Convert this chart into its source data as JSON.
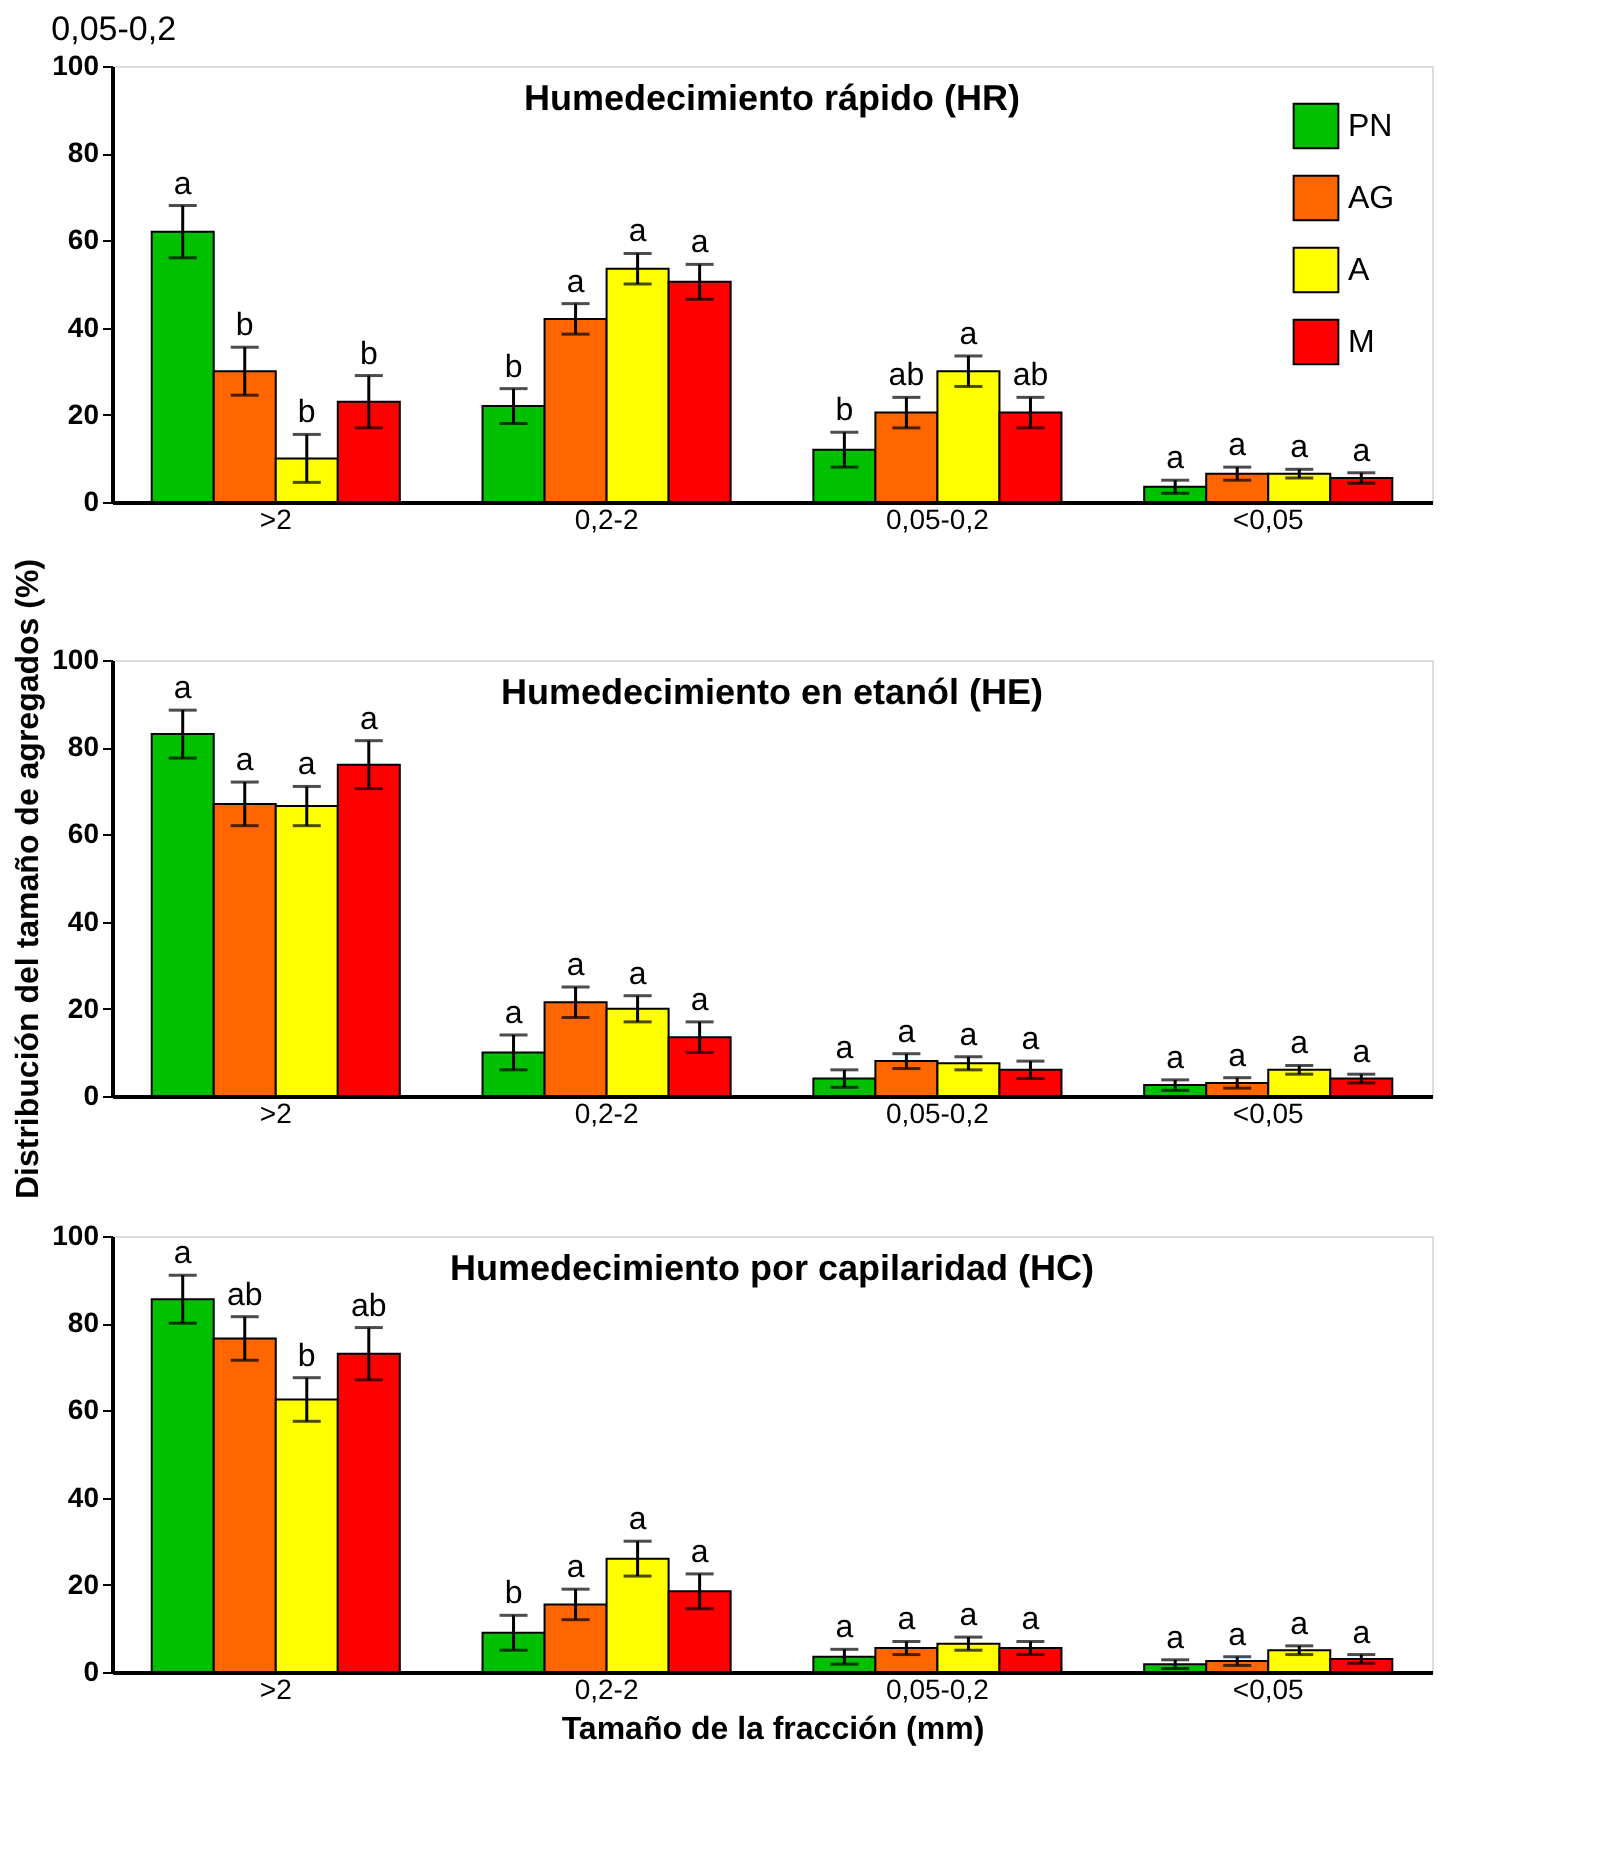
{
  "chart_data": [
    {
      "type": "bar",
      "title": "Humedecimiento rápido (HR)",
      "annotations": [
        "0,05-0,2"
      ],
      "categories": [
        ">2",
        "0,2-2",
        "0,05-0,2",
        "<0,05"
      ],
      "ylim": [
        0,
        100
      ],
      "yticks": [
        0,
        20,
        40,
        60,
        80,
        100
      ],
      "legend": "top right",
      "series": [
        {
          "name": "PN",
          "color": "#00c000",
          "values": [
            62,
            22,
            12,
            3.5
          ],
          "errors": [
            6,
            4,
            4,
            1.5
          ],
          "value_labels": [
            "a",
            "b",
            "b",
            "a"
          ]
        },
        {
          "name": "AG",
          "color": "#ff6600",
          "values": [
            30,
            42,
            20.5,
            6.5
          ],
          "errors": [
            5.5,
            3.5,
            3.5,
            1.5
          ],
          "value_labels": [
            "b",
            "a",
            "ab",
            "a"
          ]
        },
        {
          "name": "A",
          "color": "#ffff00",
          "values": [
            10,
            53.5,
            30,
            6.5
          ],
          "errors": [
            5.5,
            3.5,
            3.5,
            1
          ],
          "value_labels": [
            "b",
            "a",
            "a",
            "a"
          ]
        },
        {
          "name": "M",
          "color": "#ff0000",
          "values": [
            23,
            50.5,
            20.5,
            5.5
          ],
          "errors": [
            6,
            4,
            3.5,
            1.2
          ],
          "value_labels": [
            "b",
            "a",
            "ab",
            "a"
          ]
        }
      ]
    },
    {
      "type": "bar",
      "title": "Humedecimiento en etanól (HE)",
      "ylabel": "Distribución del tamaño de agregados (%)",
      "categories": [
        ">2",
        "0,2-2",
        "0,05-0,2",
        "<0,05"
      ],
      "ylim": [
        0,
        100
      ],
      "yticks": [
        0,
        20,
        40,
        60,
        80,
        100
      ],
      "series": [
        {
          "color": "#00c000",
          "values": [
            83,
            10,
            4,
            2.5
          ],
          "errors": [
            5.5,
            4,
            2,
            1.2
          ],
          "value_labels": [
            "a",
            "a",
            "a",
            "a"
          ]
        },
        {
          "color": "#ff6600",
          "values": [
            67,
            21.5,
            8,
            3
          ],
          "errors": [
            5,
            3.5,
            1.7,
            1.2
          ],
          "value_labels": [
            "a",
            "a",
            "a",
            "a"
          ]
        },
        {
          "color": "#ffff00",
          "values": [
            66.5,
            20,
            7.5,
            6
          ],
          "errors": [
            4.5,
            3,
            1.5,
            1
          ],
          "value_labels": [
            "a",
            "a",
            "a",
            "a"
          ]
        },
        {
          "color": "#ff0000",
          "values": [
            76,
            13.5,
            6,
            4
          ],
          "errors": [
            5.5,
            3.5,
            2,
            1
          ],
          "value_labels": [
            "a",
            "a",
            "a",
            "a"
          ]
        }
      ]
    },
    {
      "type": "bar",
      "title": "Humedecimiento por capilaridad (HC)",
      "xlabel": "Tamaño de la fracción (mm)",
      "categories": [
        ">2",
        "0,2-2",
        "0,05-0,2",
        "<0,05"
      ],
      "ylim": [
        0,
        100
      ],
      "yticks": [
        0,
        20,
        40,
        60,
        80,
        100
      ],
      "series": [
        {
          "color": "#00c000",
          "values": [
            85.5,
            9,
            3.5,
            1.8
          ],
          "errors": [
            5.5,
            4,
            1.7,
            1
          ],
          "value_labels": [
            "a",
            "b",
            "a",
            "a"
          ]
        },
        {
          "color": "#ff6600",
          "values": [
            76.5,
            15.5,
            5.5,
            2.5
          ],
          "errors": [
            5,
            3.5,
            1.5,
            1
          ],
          "value_labels": [
            "ab",
            "a",
            "a",
            "a"
          ]
        },
        {
          "color": "#ffff00",
          "values": [
            62.5,
            26,
            6.5,
            5
          ],
          "errors": [
            5,
            4,
            1.5,
            1
          ],
          "value_labels": [
            "b",
            "a",
            "a",
            "a"
          ]
        },
        {
          "color": "#ff0000",
          "values": [
            73,
            18.5,
            5.5,
            3
          ],
          "errors": [
            6,
            4,
            1.5,
            1
          ],
          "value_labels": [
            "ab",
            "a",
            "a",
            "a"
          ]
        }
      ]
    }
  ]
}
